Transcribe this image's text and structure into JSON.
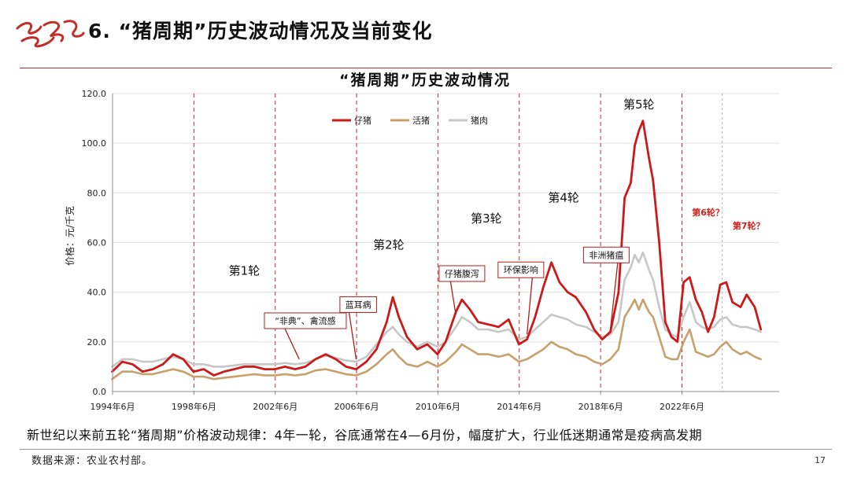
{
  "header": {
    "title": "6. “猪周期”历史波动情况及当前变化"
  },
  "summary": "新世纪以来前五轮“猪周期”价格波动规律：4年一轮，谷底通常在4—6月份，幅度扩大，行业低迷期通常是疫病高发期",
  "footer": {
    "source": "数据来源：农业农村部。",
    "page_number": "17"
  },
  "colors": {
    "accent": "#c0302a",
    "piglet": "#cc1a1a",
    "hog": "#c8a06c",
    "pork": "#c7c7c7"
  },
  "chart_data": {
    "type": "line",
    "title": "“猪周期”历史波动情况",
    "ylabel": "价格：元/千克",
    "xlabel": "",
    "ylim": [
      0,
      120
    ],
    "xlim": [
      1994.42,
      2027.2
    ],
    "yticks": [
      "0.0",
      "20.0",
      "40.0",
      "60.0",
      "80.0",
      "100.0",
      "120.0"
    ],
    "xticks": [
      {
        "x": 1994.42,
        "label": "1994年6月"
      },
      {
        "x": 1998.42,
        "label": "1998年6月"
      },
      {
        "x": 2002.42,
        "label": "2002年6月"
      },
      {
        "x": 2006.42,
        "label": "2006年6月"
      },
      {
        "x": 2010.42,
        "label": "2010年6月"
      },
      {
        "x": 2014.42,
        "label": "2014年6月"
      },
      {
        "x": 2018.42,
        "label": "2018年6月"
      },
      {
        "x": 2022.42,
        "label": "2022年6月"
      }
    ],
    "grid": true,
    "legend": "top-center",
    "dividers": [
      {
        "x": 1998.42,
        "style": "red-dashed"
      },
      {
        "x": 2002.42,
        "style": "red-dashed"
      },
      {
        "x": 2006.42,
        "style": "red-dashed"
      },
      {
        "x": 2010.42,
        "style": "red-dashed"
      },
      {
        "x": 2014.42,
        "style": "red-dashed"
      },
      {
        "x": 2018.42,
        "style": "red-dashed"
      },
      {
        "x": 2022.42,
        "style": "red-dashed"
      },
      {
        "x": 2024.4,
        "style": "gray-dashed"
      }
    ],
    "series": [
      {
        "name": "仔猪",
        "color": "#cc1a1a",
        "points": [
          [
            1994.4,
            8
          ],
          [
            1994.9,
            12
          ],
          [
            1995.4,
            11
          ],
          [
            1995.9,
            8
          ],
          [
            1996.4,
            9
          ],
          [
            1996.9,
            11
          ],
          [
            1997.4,
            15
          ],
          [
            1997.9,
            13
          ],
          [
            1998.4,
            8
          ],
          [
            1998.9,
            9
          ],
          [
            1999.4,
            6.5
          ],
          [
            1999.9,
            8
          ],
          [
            2000.4,
            9
          ],
          [
            2000.9,
            10
          ],
          [
            2001.4,
            10
          ],
          [
            2001.9,
            9
          ],
          [
            2002.4,
            9
          ],
          [
            2002.9,
            10
          ],
          [
            2003.4,
            9
          ],
          [
            2003.9,
            10
          ],
          [
            2004.4,
            13
          ],
          [
            2004.9,
            15
          ],
          [
            2005.4,
            13
          ],
          [
            2005.9,
            10
          ],
          [
            2006.4,
            9
          ],
          [
            2006.9,
            12
          ],
          [
            2007.4,
            17
          ],
          [
            2007.9,
            28
          ],
          [
            2008.2,
            38
          ],
          [
            2008.5,
            30
          ],
          [
            2008.9,
            22
          ],
          [
            2009.4,
            17
          ],
          [
            2009.9,
            19
          ],
          [
            2010.4,
            15
          ],
          [
            2010.8,
            20
          ],
          [
            2011.3,
            32
          ],
          [
            2011.6,
            37
          ],
          [
            2012.0,
            33
          ],
          [
            2012.4,
            28
          ],
          [
            2012.9,
            27
          ],
          [
            2013.4,
            26
          ],
          [
            2013.9,
            29
          ],
          [
            2014.4,
            19
          ],
          [
            2014.8,
            21
          ],
          [
            2015.2,
            30
          ],
          [
            2015.6,
            42
          ],
          [
            2016.0,
            52
          ],
          [
            2016.4,
            44
          ],
          [
            2016.8,
            40
          ],
          [
            2017.2,
            38
          ],
          [
            2017.7,
            32
          ],
          [
            2018.1,
            25
          ],
          [
            2018.5,
            21
          ],
          [
            2018.9,
            24
          ],
          [
            2019.3,
            40
          ],
          [
            2019.6,
            78
          ],
          [
            2019.9,
            84
          ],
          [
            2020.1,
            99
          ],
          [
            2020.3,
            105
          ],
          [
            2020.5,
            109
          ],
          [
            2020.8,
            94
          ],
          [
            2021.0,
            85
          ],
          [
            2021.3,
            60
          ],
          [
            2021.6,
            28
          ],
          [
            2021.9,
            22
          ],
          [
            2022.2,
            20
          ],
          [
            2022.5,
            44
          ],
          [
            2022.8,
            46
          ],
          [
            2023.1,
            37
          ],
          [
            2023.4,
            32
          ],
          [
            2023.7,
            24
          ],
          [
            2024.0,
            30
          ],
          [
            2024.3,
            43
          ],
          [
            2024.6,
            44
          ],
          [
            2024.9,
            36
          ],
          [
            2025.3,
            34
          ],
          [
            2025.6,
            39
          ],
          [
            2026.0,
            34
          ],
          [
            2026.3,
            25
          ]
        ]
      },
      {
        "name": "活猪",
        "color": "#c8a06c",
        "points": [
          [
            1994.4,
            5
          ],
          [
            1994.9,
            8
          ],
          [
            1995.4,
            8
          ],
          [
            1995.9,
            7
          ],
          [
            1996.4,
            7
          ],
          [
            1996.9,
            8
          ],
          [
            1997.4,
            9
          ],
          [
            1997.9,
            8
          ],
          [
            1998.4,
            6
          ],
          [
            1998.9,
            6
          ],
          [
            1999.4,
            5
          ],
          [
            1999.9,
            5.5
          ],
          [
            2000.4,
            6
          ],
          [
            2000.9,
            6.5
          ],
          [
            2001.4,
            7
          ],
          [
            2001.9,
            6.5
          ],
          [
            2002.4,
            6.5
          ],
          [
            2002.9,
            7
          ],
          [
            2003.4,
            6.5
          ],
          [
            2003.9,
            7
          ],
          [
            2004.4,
            8.5
          ],
          [
            2004.9,
            9
          ],
          [
            2005.4,
            8
          ],
          [
            2005.9,
            7
          ],
          [
            2006.4,
            6.5
          ],
          [
            2006.9,
            8
          ],
          [
            2007.4,
            11
          ],
          [
            2007.9,
            15
          ],
          [
            2008.2,
            17
          ],
          [
            2008.5,
            14
          ],
          [
            2008.9,
            11
          ],
          [
            2009.4,
            10
          ],
          [
            2009.9,
            12
          ],
          [
            2010.4,
            10
          ],
          [
            2010.8,
            12
          ],
          [
            2011.3,
            16
          ],
          [
            2011.6,
            19
          ],
          [
            2012.0,
            17
          ],
          [
            2012.4,
            15
          ],
          [
            2012.9,
            15
          ],
          [
            2013.4,
            14
          ],
          [
            2013.9,
            15
          ],
          [
            2014.4,
            12
          ],
          [
            2014.8,
            13
          ],
          [
            2015.2,
            15
          ],
          [
            2015.6,
            17
          ],
          [
            2016.0,
            20
          ],
          [
            2016.4,
            18
          ],
          [
            2016.8,
            17
          ],
          [
            2017.2,
            15
          ],
          [
            2017.7,
            14
          ],
          [
            2018.1,
            12
          ],
          [
            2018.5,
            11
          ],
          [
            2018.9,
            13
          ],
          [
            2019.3,
            17
          ],
          [
            2019.6,
            30
          ],
          [
            2019.9,
            34
          ],
          [
            2020.1,
            37
          ],
          [
            2020.3,
            33
          ],
          [
            2020.5,
            37
          ],
          [
            2020.8,
            32
          ],
          [
            2021.0,
            30
          ],
          [
            2021.3,
            22
          ],
          [
            2021.6,
            14
          ],
          [
            2021.9,
            13
          ],
          [
            2022.2,
            13
          ],
          [
            2022.5,
            20
          ],
          [
            2022.8,
            25
          ],
          [
            2023.1,
            16
          ],
          [
            2023.4,
            15
          ],
          [
            2023.7,
            14
          ],
          [
            2024.0,
            15
          ],
          [
            2024.3,
            18
          ],
          [
            2024.6,
            20
          ],
          [
            2024.9,
            17
          ],
          [
            2025.3,
            15
          ],
          [
            2025.6,
            16
          ],
          [
            2026.0,
            14
          ],
          [
            2026.3,
            13
          ]
        ]
      },
      {
        "name": "猪肉",
        "color": "#c7c7c7",
        "points": [
          [
            1994.4,
            10
          ],
          [
            1994.9,
            13
          ],
          [
            1995.4,
            13
          ],
          [
            1995.9,
            12
          ],
          [
            1996.4,
            12
          ],
          [
            1996.9,
            13
          ],
          [
            1997.4,
            14
          ],
          [
            1997.9,
            13
          ],
          [
            1998.4,
            11
          ],
          [
            1998.9,
            11
          ],
          [
            1999.4,
            10
          ],
          [
            1999.9,
            10
          ],
          [
            2000.4,
            10.5
          ],
          [
            2000.9,
            11
          ],
          [
            2001.4,
            11
          ],
          [
            2001.9,
            11
          ],
          [
            2002.4,
            11
          ],
          [
            2002.9,
            11.5
          ],
          [
            2003.4,
            11
          ],
          [
            2003.9,
            11.5
          ],
          [
            2004.4,
            13
          ],
          [
            2004.9,
            14.5
          ],
          [
            2005.4,
            13.5
          ],
          [
            2005.9,
            12.5
          ],
          [
            2006.4,
            12
          ],
          [
            2006.9,
            14
          ],
          [
            2007.4,
            19
          ],
          [
            2007.9,
            24
          ],
          [
            2008.2,
            26
          ],
          [
            2008.5,
            23
          ],
          [
            2008.9,
            20
          ],
          [
            2009.4,
            18
          ],
          [
            2009.9,
            20
          ],
          [
            2010.4,
            18
          ],
          [
            2010.8,
            20
          ],
          [
            2011.3,
            26
          ],
          [
            2011.6,
            30
          ],
          [
            2012.0,
            28
          ],
          [
            2012.4,
            25
          ],
          [
            2012.9,
            25
          ],
          [
            2013.4,
            24
          ],
          [
            2013.9,
            25
          ],
          [
            2014.4,
            21
          ],
          [
            2014.8,
            22
          ],
          [
            2015.2,
            25
          ],
          [
            2015.6,
            28
          ],
          [
            2016.0,
            31
          ],
          [
            2016.4,
            30
          ],
          [
            2016.8,
            29
          ],
          [
            2017.2,
            27
          ],
          [
            2017.7,
            26
          ],
          [
            2018.1,
            24
          ],
          [
            2018.5,
            22
          ],
          [
            2018.9,
            23
          ],
          [
            2019.3,
            28
          ],
          [
            2019.6,
            45
          ],
          [
            2019.9,
            50
          ],
          [
            2020.1,
            55
          ],
          [
            2020.3,
            52
          ],
          [
            2020.5,
            56
          ],
          [
            2020.8,
            49
          ],
          [
            2021.0,
            45
          ],
          [
            2021.3,
            34
          ],
          [
            2021.6,
            25
          ],
          [
            2021.9,
            23
          ],
          [
            2022.2,
            22
          ],
          [
            2022.5,
            30
          ],
          [
            2022.8,
            36
          ],
          [
            2023.1,
            28
          ],
          [
            2023.4,
            26
          ],
          [
            2023.7,
            25
          ],
          [
            2024.0,
            26
          ],
          [
            2024.3,
            29
          ],
          [
            2024.6,
            30
          ],
          [
            2024.9,
            27
          ],
          [
            2025.3,
            26
          ],
          [
            2025.6,
            26
          ],
          [
            2026.0,
            25
          ],
          [
            2026.3,
            24
          ]
        ]
      }
    ],
    "annotations": [
      {
        "id": "round-1",
        "text": "第1轮",
        "x": 2000.9,
        "y": 47,
        "kind": "round"
      },
      {
        "id": "round-2",
        "text": "第2轮",
        "x": 2008.0,
        "y": 57.5,
        "kind": "round"
      },
      {
        "id": "round-3",
        "text": "第3轮",
        "x": 2012.8,
        "y": 68,
        "kind": "round"
      },
      {
        "id": "round-4",
        "text": "第4轮",
        "x": 2016.6,
        "y": 76.5,
        "kind": "round"
      },
      {
        "id": "round-5",
        "text": "第5轮",
        "x": 2020.3,
        "y": 114,
        "kind": "round"
      },
      {
        "id": "round-6",
        "text": "第6轮？",
        "x": 2023.7,
        "y": 71,
        "kind": "future"
      },
      {
        "id": "round-7",
        "text": "第7轮？",
        "x": 2025.7,
        "y": 65.5,
        "kind": "future"
      }
    ],
    "callouts": [
      {
        "id": "sars-avian-flu",
        "text": "“非典”、禽流感",
        "x": 2003.9,
        "y": 28.5,
        "tx": 2003.6,
        "ty": 13
      },
      {
        "id": "blue-ear",
        "text": "蓝耳病",
        "x": 2006.5,
        "y": 35,
        "tx": 2006.4,
        "ty": 13
      },
      {
        "id": "piglet-diarrhea",
        "text": "仔猪腹泻",
        "x": 2011.6,
        "y": 47.5,
        "tx": 2011.3,
        "ty": 31
      },
      {
        "id": "env-protection",
        "text": "环保影响",
        "x": 2014.5,
        "y": 49,
        "tx": 2014.8,
        "ty": 23
      },
      {
        "id": "african-swine-fever",
        "text": "非洲猪瘟",
        "x": 2018.7,
        "y": 55,
        "tx": 2018.9,
        "ty": 25
      }
    ]
  }
}
